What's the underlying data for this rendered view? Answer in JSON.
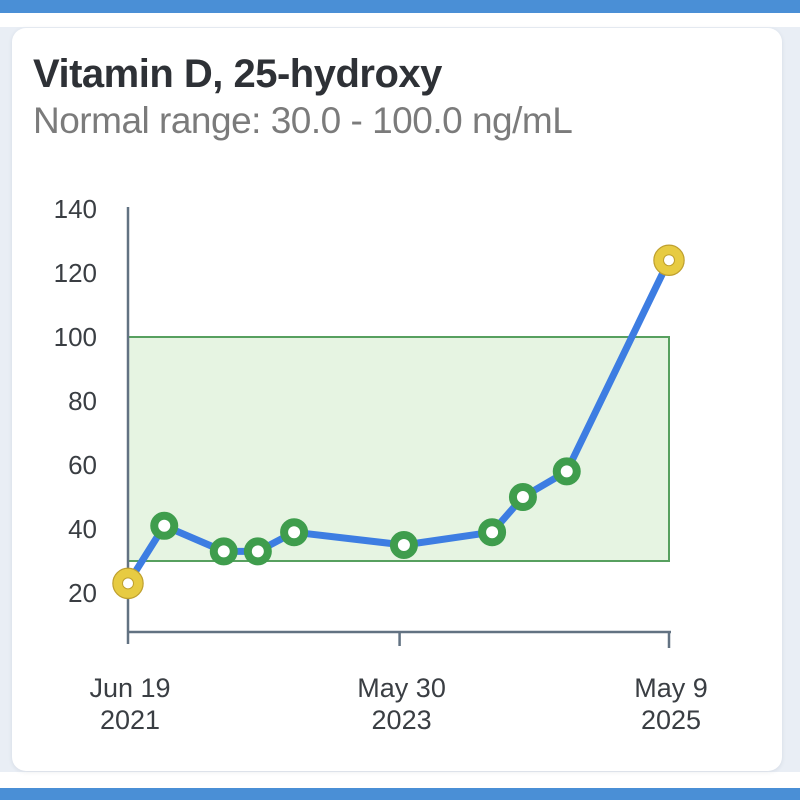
{
  "colors": {
    "chrome_bar": "#4a8fd6",
    "page_background": "#e9eef5",
    "card_background": "#ffffff",
    "title_text": "#2e3136",
    "subtitle_text": "#7b7b7b",
    "axis": "#627282",
    "tick_label": "#3a3e43",
    "trend_line": "#3d7de2",
    "band_fill": "#e6f4e2",
    "band_border": "#57a05f",
    "marker_in_range": "#3f9d4d",
    "marker_out_of_range": "#e7cb42",
    "marker_out_of_range_outline": "#bfa02e",
    "marker_hole": "#ffffff"
  },
  "chart_data": {
    "type": "line",
    "title": "Vitamin D, 25-hydroxy",
    "subtitle": "Normal range: 30.0 - 100.0 ng/mL",
    "unit": "ng/mL",
    "normal_range": {
      "low": 30.0,
      "high": 100.0
    },
    "ylim": [
      20,
      140
    ],
    "y_ticks": [
      20,
      40,
      60,
      80,
      100,
      120,
      140
    ],
    "x_ticks": [
      {
        "line1": "Jun 19",
        "line2": "2021",
        "frac": 0.0
      },
      {
        "line1": "May 30",
        "line2": "2023",
        "frac": 0.502
      },
      {
        "line1": "May 9",
        "line2": "2025",
        "frac": 1.0
      }
    ],
    "grid": false,
    "legend": "none",
    "points": [
      {
        "frac": 0.0,
        "value": 23,
        "status": "out-of-range"
      },
      {
        "frac": 0.067,
        "value": 41,
        "status": "in-range"
      },
      {
        "frac": 0.177,
        "value": 33,
        "status": "in-range"
      },
      {
        "frac": 0.24,
        "value": 33,
        "status": "in-range"
      },
      {
        "frac": 0.307,
        "value": 39,
        "status": "in-range"
      },
      {
        "frac": 0.51,
        "value": 35,
        "status": "in-range"
      },
      {
        "frac": 0.673,
        "value": 39,
        "status": "in-range"
      },
      {
        "frac": 0.73,
        "value": 50,
        "status": "in-range"
      },
      {
        "frac": 0.811,
        "value": 58,
        "status": "in-range"
      },
      {
        "frac": 1.0,
        "value": 124,
        "status": "out-of-range"
      }
    ]
  }
}
